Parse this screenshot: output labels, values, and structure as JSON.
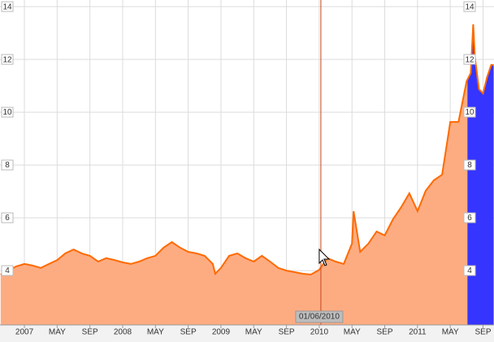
{
  "chart_data": {
    "type": "area",
    "x": [
      -2.9,
      -1,
      0,
      1,
      2,
      3,
      4,
      5,
      6,
      7,
      8,
      9,
      10,
      11,
      12,
      13,
      14,
      15,
      16,
      17,
      18,
      19,
      20,
      21,
      22,
      23,
      23.3,
      24,
      25,
      26,
      27,
      28,
      29,
      30,
      31,
      32,
      33,
      34,
      35,
      36,
      37,
      38,
      39,
      40,
      40.2,
      41,
      42,
      43,
      44,
      45,
      46,
      47,
      48,
      49,
      50,
      51,
      52,
      53,
      54,
      54.5,
      54.8,
      55,
      55.5,
      56,
      56.5,
      57,
      57.3
    ],
    "series": [
      {
        "color": "#ff6a00",
        "fill": "#fdac82",
        "values": [
          3.85,
          4.16,
          4.25,
          4.19,
          4.1,
          4.25,
          4.4,
          4.65,
          4.8,
          4.65,
          4.56,
          4.34,
          4.47,
          4.4,
          4.31,
          4.25,
          4.34,
          4.47,
          4.56,
          4.87,
          5.08,
          4.87,
          4.71,
          4.65,
          4.56,
          4.25,
          3.88,
          4.1,
          4.56,
          4.65,
          4.47,
          4.34,
          4.56,
          4.34,
          4.1,
          4.0,
          3.94,
          3.88,
          3.85,
          4.03,
          4.47,
          4.34,
          4.25,
          5.02,
          6.25,
          4.71,
          5.02,
          5.48,
          5.33,
          5.94,
          6.4,
          6.93,
          6.25,
          7.02,
          7.42,
          7.63,
          9.63,
          9.63,
          11.17,
          11.48,
          13.33,
          12.1,
          10.87,
          10.71,
          11.33,
          11.79,
          11.79
        ]
      }
    ],
    "xlim": [
      -2.98,
      57.34
    ],
    "xticks": [
      {
        "value": 0,
        "label": "2007"
      },
      {
        "value": 4,
        "label": "MAY"
      },
      {
        "value": 8,
        "label": "SEP"
      },
      {
        "value": 12,
        "label": "2008"
      },
      {
        "value": 16,
        "label": "MAY"
      },
      {
        "value": 20,
        "label": "SEP"
      },
      {
        "value": 24,
        "label": "2009"
      },
      {
        "value": 28,
        "label": "MAY"
      },
      {
        "value": 32,
        "label": "SEP"
      },
      {
        "value": 36,
        "label": "2010"
      },
      {
        "value": 40,
        "label": "MAY"
      },
      {
        "value": 44,
        "label": "SEP"
      },
      {
        "value": 48,
        "label": "2011"
      },
      {
        "value": 52,
        "label": "MAY"
      },
      {
        "value": 56,
        "label": "SEP"
      }
    ],
    "ylim": [
      1.94,
      14.25
    ],
    "yticks": [
      4,
      6,
      8,
      10,
      12,
      14
    ],
    "grid": true,
    "highlight": {
      "range": [
        54.1,
        57.34
      ],
      "color": "#3535ff"
    },
    "crosshair": {
      "x": 36.2,
      "label": "01/06/2010",
      "color": "#c8461e"
    }
  }
}
